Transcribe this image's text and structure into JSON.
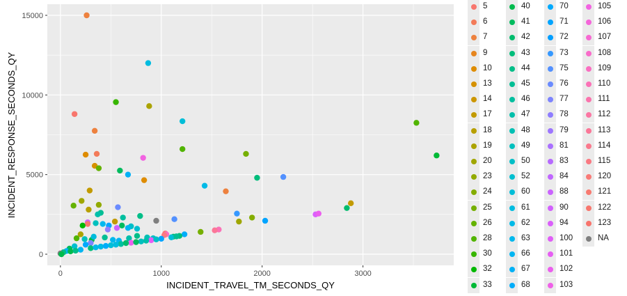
{
  "chart_data": {
    "type": "scatter",
    "title": "",
    "xlabel": "INCIDENT_TRAVEL_TM_SECONDS_QY",
    "ylabel": "INCIDENT_RESPONSE_SECONDS_QY",
    "xlim": [
      -130,
      3900
    ],
    "ylim": [
      -700,
      15700
    ],
    "x_ticks": [
      0,
      1000,
      2000,
      3000
    ],
    "y_ticks": [
      0,
      5000,
      10000,
      15000
    ],
    "grid": true,
    "legend_placement": "right",
    "legend_title": "",
    "legend_entries": [
      {
        "label": "5",
        "color": "#F8766D"
      },
      {
        "label": "6",
        "color": "#F37B59"
      },
      {
        "label": "7",
        "color": "#ED813E"
      },
      {
        "label": "9",
        "color": "#E6861F"
      },
      {
        "label": "10",
        "color": "#DE8C00"
      },
      {
        "label": "13",
        "color": "#D59100"
      },
      {
        "label": "14",
        "color": "#CC9600"
      },
      {
        "label": "17",
        "color": "#C29A00"
      },
      {
        "label": "18",
        "color": "#B79F00"
      },
      {
        "label": "19",
        "color": "#ABA300"
      },
      {
        "label": "20",
        "color": "#9FA600"
      },
      {
        "label": "23",
        "color": "#92AA00"
      },
      {
        "label": "24",
        "color": "#84AD00"
      },
      {
        "label": "25",
        "color": "#75AF00"
      },
      {
        "label": "26",
        "color": "#64B200"
      },
      {
        "label": "28",
        "color": "#51B400"
      },
      {
        "label": "30",
        "color": "#38B600"
      },
      {
        "label": "32",
        "color": "#00B800"
      },
      {
        "label": "33",
        "color": "#00B936"
      },
      {
        "label": "40",
        "color": "#00BA4D"
      },
      {
        "label": "41",
        "color": "#00BB5E"
      },
      {
        "label": "42",
        "color": "#00BC6D"
      },
      {
        "label": "43",
        "color": "#00BD7B"
      },
      {
        "label": "44",
        "color": "#00BE88"
      },
      {
        "label": "45",
        "color": "#00BE94"
      },
      {
        "label": "46",
        "color": "#00BF9F"
      },
      {
        "label": "47",
        "color": "#00BFAA"
      },
      {
        "label": "48",
        "color": "#00C0B4"
      },
      {
        "label": "49",
        "color": "#00C0BE"
      },
      {
        "label": "50",
        "color": "#00BFC7"
      },
      {
        "label": "52",
        "color": "#00BFD0"
      },
      {
        "label": "60",
        "color": "#00BED8"
      },
      {
        "label": "61",
        "color": "#00BCE0"
      },
      {
        "label": "62",
        "color": "#00BAE7"
      },
      {
        "label": "63",
        "color": "#00B8ED"
      },
      {
        "label": "66",
        "color": "#00B5F2"
      },
      {
        "label": "67",
        "color": "#00B1F6"
      },
      {
        "label": "68",
        "color": "#00ADFA"
      },
      {
        "label": "70",
        "color": "#00A9FD"
      },
      {
        "label": "71",
        "color": "#00A4FF"
      },
      {
        "label": "72",
        "color": "#009EFF"
      },
      {
        "label": "73",
        "color": "#3598FF"
      },
      {
        "label": "75",
        "color": "#5391FF"
      },
      {
        "label": "76",
        "color": "#6A8BFF"
      },
      {
        "label": "77",
        "color": "#7D84FF"
      },
      {
        "label": "78",
        "color": "#8E7DFF"
      },
      {
        "label": "79",
        "color": "#9D76FF"
      },
      {
        "label": "81",
        "color": "#AA70FF"
      },
      {
        "label": "83",
        "color": "#B66AFF"
      },
      {
        "label": "84",
        "color": "#C066FF"
      },
      {
        "label": "88",
        "color": "#CA63FF"
      },
      {
        "label": "90",
        "color": "#D261FE"
      },
      {
        "label": "94",
        "color": "#DA5FFB"
      },
      {
        "label": "100",
        "color": "#E05EF8"
      },
      {
        "label": "101",
        "color": "#E65EF3"
      },
      {
        "label": "102",
        "color": "#EB5FEE"
      },
      {
        "label": "103",
        "color": "#EF61E8"
      },
      {
        "label": "105",
        "color": "#F263E1"
      },
      {
        "label": "106",
        "color": "#F566DA"
      },
      {
        "label": "107",
        "color": "#F769D2"
      },
      {
        "label": "108",
        "color": "#F96CCA"
      },
      {
        "label": "109",
        "color": "#FA6FC1"
      },
      {
        "label": "110",
        "color": "#FB72B7"
      },
      {
        "label": "111",
        "color": "#FB74AD"
      },
      {
        "label": "112",
        "color": "#FB76A3"
      },
      {
        "label": "113",
        "color": "#FB7798"
      },
      {
        "label": "114",
        "color": "#FA798D"
      },
      {
        "label": "115",
        "color": "#FA7982"
      },
      {
        "label": "120",
        "color": "#F97A77"
      },
      {
        "label": "121",
        "color": "#F87A70"
      },
      {
        "label": "122",
        "color": "#F8776E"
      },
      {
        "label": "123",
        "color": "#F8746C"
      },
      {
        "label": "NA",
        "color": "#7F7F7F"
      }
    ],
    "points": [
      {
        "x": 260,
        "y": 15000,
        "color": "#ED813E"
      },
      {
        "x": 870,
        "y": 12000,
        "color": "#00BCE0"
      },
      {
        "x": 550,
        "y": 9550,
        "color": "#38B600"
      },
      {
        "x": 880,
        "y": 9300,
        "color": "#ABA300"
      },
      {
        "x": 140,
        "y": 8800,
        "color": "#F8766D"
      },
      {
        "x": 1210,
        "y": 8350,
        "color": "#00BED8"
      },
      {
        "x": 3530,
        "y": 8250,
        "color": "#51B400"
      },
      {
        "x": 340,
        "y": 7750,
        "color": "#ED813E"
      },
      {
        "x": 1210,
        "y": 6600,
        "color": "#51B400"
      },
      {
        "x": 1840,
        "y": 6300,
        "color": "#75AF00"
      },
      {
        "x": 360,
        "y": 6300,
        "color": "#F37B59"
      },
      {
        "x": 250,
        "y": 6250,
        "color": "#DE8C00"
      },
      {
        "x": 3730,
        "y": 6200,
        "color": "#00B936"
      },
      {
        "x": 820,
        "y": 6050,
        "color": "#F263E1"
      },
      {
        "x": 340,
        "y": 5550,
        "color": "#D59100"
      },
      {
        "x": 380,
        "y": 5400,
        "color": "#64B200"
      },
      {
        "x": 590,
        "y": 5250,
        "color": "#00BB5E"
      },
      {
        "x": 670,
        "y": 5000,
        "color": "#00B1F6"
      },
      {
        "x": 1950,
        "y": 4800,
        "color": "#00BD7B"
      },
      {
        "x": 2210,
        "y": 4850,
        "color": "#5391FF"
      },
      {
        "x": 830,
        "y": 4650,
        "color": "#DE8C00"
      },
      {
        "x": 1430,
        "y": 4300,
        "color": "#00BAE7"
      },
      {
        "x": 290,
        "y": 4000,
        "color": "#C29A00"
      },
      {
        "x": 1640,
        "y": 3950,
        "color": "#ED813E"
      },
      {
        "x": 210,
        "y": 3350,
        "color": "#9FA600"
      },
      {
        "x": 130,
        "y": 3050,
        "color": "#64B200"
      },
      {
        "x": 380,
        "y": 3100,
        "color": "#92AA00"
      },
      {
        "x": 2880,
        "y": 3200,
        "color": "#C29A00"
      },
      {
        "x": 570,
        "y": 2950,
        "color": "#6A8BFF"
      },
      {
        "x": 2840,
        "y": 2900,
        "color": "#00BC6D"
      },
      {
        "x": 280,
        "y": 2800,
        "color": "#B79F00"
      },
      {
        "x": 400,
        "y": 2600,
        "color": "#00BE94"
      },
      {
        "x": 370,
        "y": 2500,
        "color": "#00BFAA"
      },
      {
        "x": 1750,
        "y": 2550,
        "color": "#3598FF"
      },
      {
        "x": 2530,
        "y": 2500,
        "color": "#DA5FFB"
      },
      {
        "x": 2560,
        "y": 2550,
        "color": "#EB5FEE"
      },
      {
        "x": 790,
        "y": 2400,
        "color": "#00BE88"
      },
      {
        "x": 620,
        "y": 2300,
        "color": "#00BF9F"
      },
      {
        "x": 1130,
        "y": 2200,
        "color": "#5391FF"
      },
      {
        "x": 950,
        "y": 2100,
        "color": "#7F7F7F"
      },
      {
        "x": 1900,
        "y": 2300,
        "color": "#84AD00"
      },
      {
        "x": 1770,
        "y": 2050,
        "color": "#9FA600"
      },
      {
        "x": 2030,
        "y": 2100,
        "color": "#00A4FF"
      },
      {
        "x": 540,
        "y": 2050,
        "color": "#C29A00"
      },
      {
        "x": 270,
        "y": 2000,
        "color": "#D261FE"
      },
      {
        "x": 270,
        "y": 1900,
        "color": "#F8766D"
      },
      {
        "x": 350,
        "y": 1950,
        "color": "#00C0BE"
      },
      {
        "x": 420,
        "y": 1900,
        "color": "#00B8ED"
      },
      {
        "x": 220,
        "y": 1800,
        "color": "#00B800"
      },
      {
        "x": 480,
        "y": 1800,
        "color": "#00A4FF"
      },
      {
        "x": 610,
        "y": 1800,
        "color": "#00BB5E"
      },
      {
        "x": 700,
        "y": 1750,
        "color": "#00BFC7"
      },
      {
        "x": 670,
        "y": 1650,
        "color": "#00B5F2"
      },
      {
        "x": 760,
        "y": 1600,
        "color": "#00BFD0"
      },
      {
        "x": 560,
        "y": 1650,
        "color": "#CA63FF"
      },
      {
        "x": 470,
        "y": 1550,
        "color": "#8E7DFF"
      },
      {
        "x": 1570,
        "y": 1550,
        "color": "#FB72B7"
      },
      {
        "x": 1530,
        "y": 1500,
        "color": "#FB7798"
      },
      {
        "x": 1390,
        "y": 1400,
        "color": "#75AF00"
      },
      {
        "x": 1040,
        "y": 1300,
        "color": "#F8746C"
      },
      {
        "x": 1050,
        "y": 1250,
        "color": "#FA6FC1"
      },
      {
        "x": 1230,
        "y": 1250,
        "color": "#00ADFA"
      },
      {
        "x": 1030,
        "y": 1200,
        "color": "#FA7982"
      },
      {
        "x": 200,
        "y": 1250,
        "color": "#ABA300"
      },
      {
        "x": 160,
        "y": 1000,
        "color": "#51B400"
      },
      {
        "x": 240,
        "y": 950,
        "color": "#00C0BE"
      },
      {
        "x": 310,
        "y": 900,
        "color": "#00BA4D"
      },
      {
        "x": 330,
        "y": 1100,
        "color": "#00BBDC"
      },
      {
        "x": 440,
        "y": 1050,
        "color": "#00BE94"
      },
      {
        "x": 520,
        "y": 900,
        "color": "#00B8ED"
      },
      {
        "x": 680,
        "y": 1000,
        "color": "#00BFAA"
      },
      {
        "x": 760,
        "y": 1150,
        "color": "#00BE88"
      },
      {
        "x": 860,
        "y": 1050,
        "color": "#00C0B4"
      },
      {
        "x": 920,
        "y": 1000,
        "color": "#00BFC7"
      },
      {
        "x": 1120,
        "y": 1100,
        "color": "#00BC6D"
      },
      {
        "x": 1180,
        "y": 1150,
        "color": "#00BD7B"
      },
      {
        "x": 580,
        "y": 850,
        "color": "#00B5F2"
      },
      {
        "x": 300,
        "y": 700,
        "color": "#7D84FF"
      },
      {
        "x": 250,
        "y": 600,
        "color": "#00A9FD"
      },
      {
        "x": 140,
        "y": 500,
        "color": "#00BFD0"
      },
      {
        "x": 90,
        "y": 350,
        "color": "#00BB5E"
      },
      {
        "x": 60,
        "y": 200,
        "color": "#00B1F6"
      },
      {
        "x": 30,
        "y": 120,
        "color": "#00BE88"
      },
      {
        "x": 0,
        "y": 50,
        "color": "#7F7F7F"
      },
      {
        "x": 10,
        "y": 0,
        "color": "#00BA4D"
      },
      {
        "x": 400,
        "y": 480,
        "color": "#00BAE7"
      },
      {
        "x": 600,
        "y": 640,
        "color": "#00BF9F"
      },
      {
        "x": 800,
        "y": 800,
        "color": "#00C0BE"
      },
      {
        "x": 900,
        "y": 880,
        "color": "#E65EF3"
      },
      {
        "x": 1000,
        "y": 970,
        "color": "#00A4FF"
      },
      {
        "x": 1100,
        "y": 1060,
        "color": "#00BED8"
      },
      {
        "x": 700,
        "y": 720,
        "color": "#EB5FEE"
      },
      {
        "x": 300,
        "y": 380,
        "color": "#00BD7B"
      },
      {
        "x": 200,
        "y": 280,
        "color": "#00B5F2"
      },
      {
        "x": 500,
        "y": 560,
        "color": "#00BED8"
      },
      {
        "x": 650,
        "y": 700,
        "color": "#00BC6D"
      },
      {
        "x": 850,
        "y": 850,
        "color": "#00BFAA"
      },
      {
        "x": 950,
        "y": 930,
        "color": "#00BFC7"
      },
      {
        "x": 1150,
        "y": 1120,
        "color": "#00BE94"
      },
      {
        "x": 350,
        "y": 430,
        "color": "#00BAE7"
      },
      {
        "x": 450,
        "y": 520,
        "color": "#00ADFA"
      },
      {
        "x": 550,
        "y": 600,
        "color": "#00BCE0"
      },
      {
        "x": 750,
        "y": 760,
        "color": "#00BB5E"
      },
      {
        "x": 100,
        "y": 180,
        "color": "#00BA4D"
      },
      {
        "x": 150,
        "y": 220,
        "color": "#00BE88"
      }
    ]
  }
}
